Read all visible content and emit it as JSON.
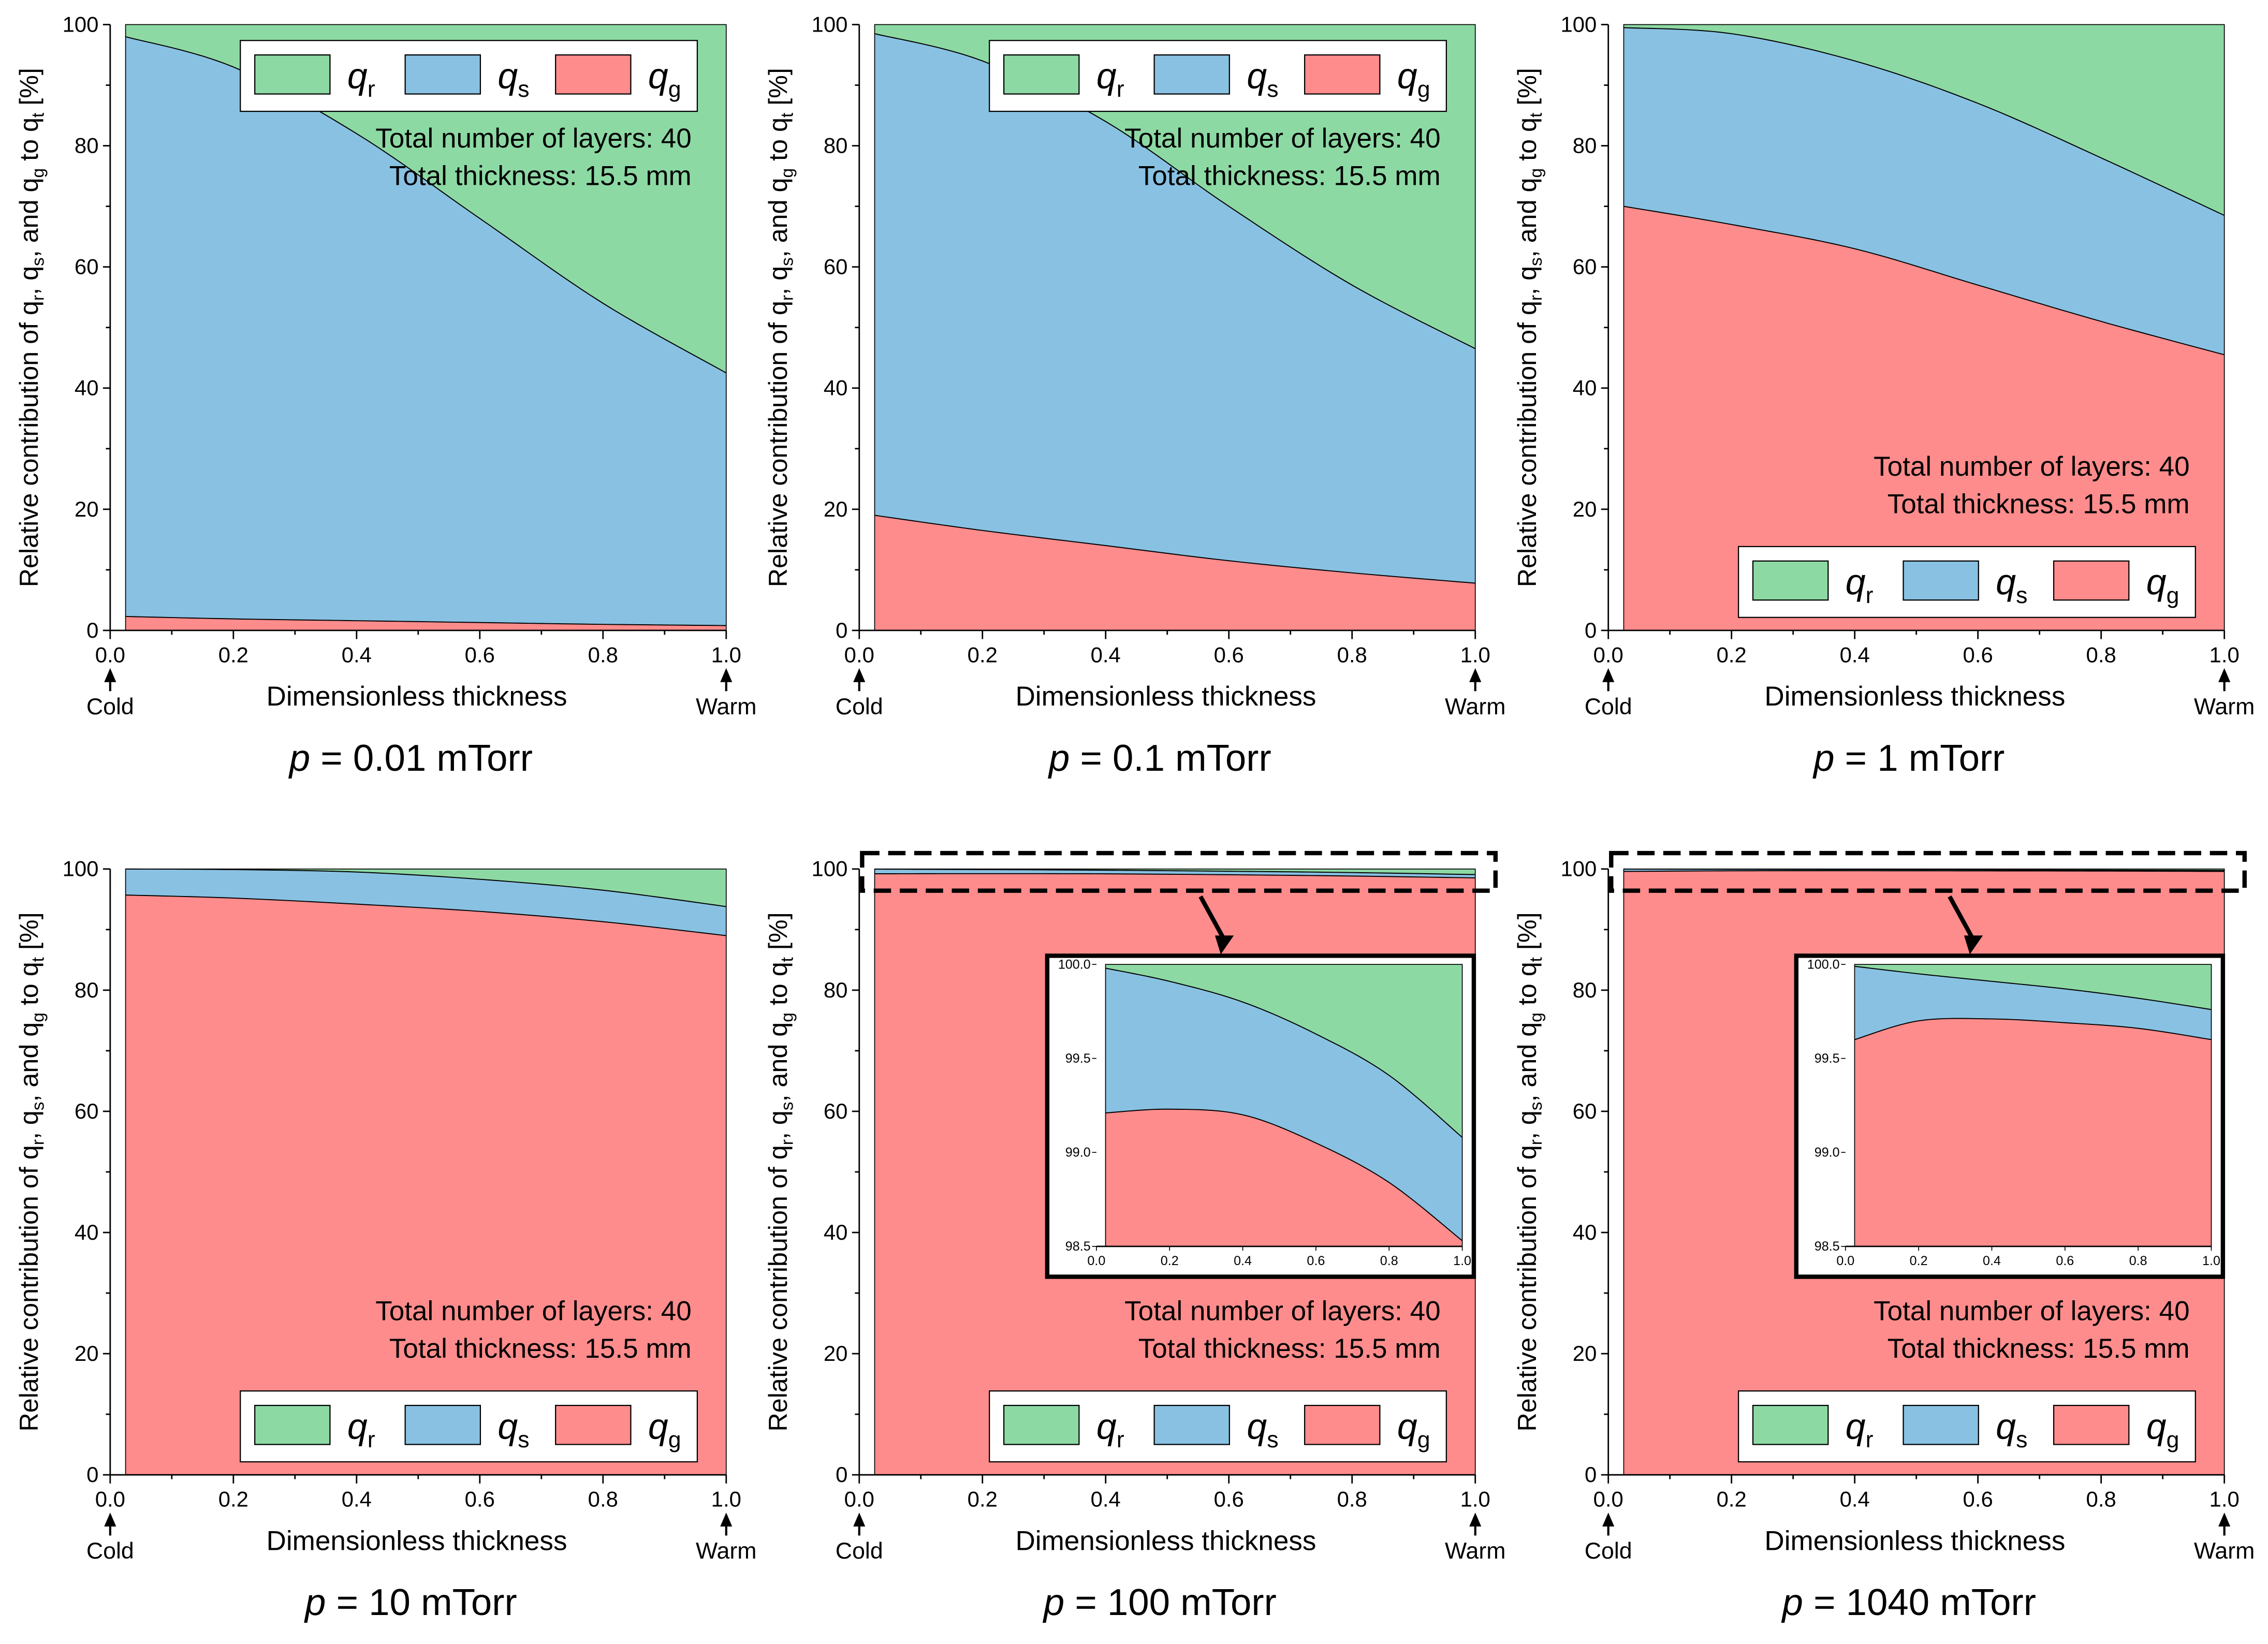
{
  "colors": {
    "q_r": "#8dd9a4",
    "q_s": "#89c1e2",
    "q_g": "#fe8c8c"
  },
  "common": {
    "xlabel": "Dimensionless thickness",
    "ylabel_parts": [
      "Relative contribution of q",
      "r",
      ", q",
      "s",
      ", and q",
      "g",
      " to q",
      "t",
      " [%]"
    ],
    "cold": "Cold",
    "warm": "Warm",
    "legend": [
      {
        "key": "q_r",
        "q": "q",
        "sub": "r"
      },
      {
        "key": "q_s",
        "q": "q",
        "sub": "s"
      },
      {
        "key": "q_g",
        "q": "q",
        "sub": "g"
      }
    ],
    "annotation": [
      "Total number of layers: 40",
      "Total thickness: 15.5 mm"
    ],
    "xticks": [
      "0.0",
      "0.2",
      "0.4",
      "0.6",
      "0.8",
      "1.0"
    ],
    "yticks": [
      "0",
      "20",
      "40",
      "60",
      "80",
      "100"
    ],
    "inset_xticks": [
      "0.0",
      "0.2",
      "0.4",
      "0.6",
      "0.8",
      "1.0"
    ],
    "inset_yticks": [
      "98.5",
      "99.0",
      "99.5",
      "100.0"
    ]
  },
  "chart_data": [
    {
      "type": "area",
      "title_var": "p",
      "title_rest": "= 0.01 mTorr",
      "xlim": [
        0,
        1
      ],
      "ylim": [
        0,
        100
      ],
      "legend_placement": "top-right",
      "x": [
        0.025,
        0.2,
        0.4,
        0.6,
        0.8,
        1.0
      ],
      "series": [
        {
          "name": "q_g",
          "values": [
            2.3,
            1.9,
            1.6,
            1.3,
            1.0,
            0.8
          ]
        },
        {
          "name": "q_s",
          "values": [
            95.7,
            91.1,
            80.4,
            66.7,
            53.0,
            41.7
          ]
        },
        {
          "name": "q_r",
          "values": [
            2.0,
            7.0,
            18.0,
            32.0,
            46.0,
            57.5
          ]
        }
      ]
    },
    {
      "type": "area",
      "title_var": "p",
      "title_rest": "= 0.1 mTorr",
      "xlim": [
        0,
        1
      ],
      "ylim": [
        0,
        100
      ],
      "legend_placement": "top-right",
      "x": [
        0.025,
        0.2,
        0.4,
        0.6,
        0.8,
        1.0
      ],
      "series": [
        {
          "name": "q_g",
          "values": [
            19,
            16.5,
            14,
            11.5,
            9.5,
            7.8
          ]
        },
        {
          "name": "q_s",
          "values": [
            79.5,
            77.5,
            70,
            58.5,
            47.5,
            38.7
          ]
        },
        {
          "name": "q_r",
          "values": [
            1.5,
            6,
            16,
            30,
            43,
            53.5
          ]
        }
      ]
    },
    {
      "type": "area",
      "title_var": "p",
      "title_rest": "= 1 mTorr",
      "xlim": [
        0,
        1
      ],
      "ylim": [
        0,
        100
      ],
      "legend_placement": "bottom-right",
      "x": [
        0.025,
        0.2,
        0.4,
        0.6,
        0.8,
        1.0
      ],
      "series": [
        {
          "name": "q_g",
          "values": [
            70,
            67,
            63,
            57,
            51,
            45.5
          ]
        },
        {
          "name": "q_s",
          "values": [
            29.5,
            31.5,
            31,
            30,
            27,
            23
          ]
        },
        {
          "name": "q_r",
          "values": [
            0.5,
            1.5,
            6,
            13,
            22,
            31.5
          ]
        }
      ]
    },
    {
      "type": "area",
      "title_var": "p",
      "title_rest": "= 10 mTorr",
      "xlim": [
        0,
        1
      ],
      "ylim": [
        0,
        100
      ],
      "legend_placement": "bottom-right",
      "x": [
        0.025,
        0.2,
        0.4,
        0.6,
        0.8,
        1.0
      ],
      "series": [
        {
          "name": "q_g",
          "values": [
            95.7,
            95.2,
            94.2,
            93,
            91.3,
            89
          ]
        },
        {
          "name": "q_s",
          "values": [
            4.3,
            4.7,
            5.3,
            5.3,
            5.2,
            4.8
          ]
        },
        {
          "name": "q_r",
          "values": [
            0,
            0.1,
            0.5,
            1.7,
            3.5,
            6.2
          ]
        }
      ]
    },
    {
      "type": "area",
      "title_var": "p",
      "title_rest": "= 100 mTorr",
      "xlim": [
        0,
        1
      ],
      "ylim": [
        0,
        100
      ],
      "legend_placement": "bottom-right",
      "inset_ylim": [
        98.5,
        100
      ],
      "x": [
        0.025,
        0.2,
        0.4,
        0.6,
        0.8,
        1.0
      ],
      "series": [
        {
          "name": "q_g",
          "values": [
            99.21,
            99.23,
            99.2,
            99.05,
            98.84,
            98.53
          ]
        },
        {
          "name": "q_s",
          "values": [
            0.77,
            0.68,
            0.6,
            0.58,
            0.57,
            0.55
          ]
        },
        {
          "name": "q_r",
          "values": [
            0.02,
            0.09,
            0.2,
            0.37,
            0.59,
            0.92
          ]
        }
      ]
    },
    {
      "type": "area",
      "title_var": "p",
      "title_rest": "= 1040 mTorr",
      "xlim": [
        0,
        1
      ],
      "ylim": [
        0,
        100
      ],
      "legend_placement": "bottom-right",
      "inset_ylim": [
        98.5,
        100
      ],
      "x": [
        0.025,
        0.2,
        0.4,
        0.6,
        0.8,
        1.0
      ],
      "series": [
        {
          "name": "q_g",
          "values": [
            99.6,
            99.7,
            99.71,
            99.69,
            99.66,
            99.6
          ]
        },
        {
          "name": "q_s",
          "values": [
            0.39,
            0.25,
            0.2,
            0.18,
            0.16,
            0.16
          ]
        },
        {
          "name": "q_r",
          "values": [
            0.01,
            0.05,
            0.09,
            0.13,
            0.18,
            0.24
          ]
        }
      ]
    }
  ]
}
